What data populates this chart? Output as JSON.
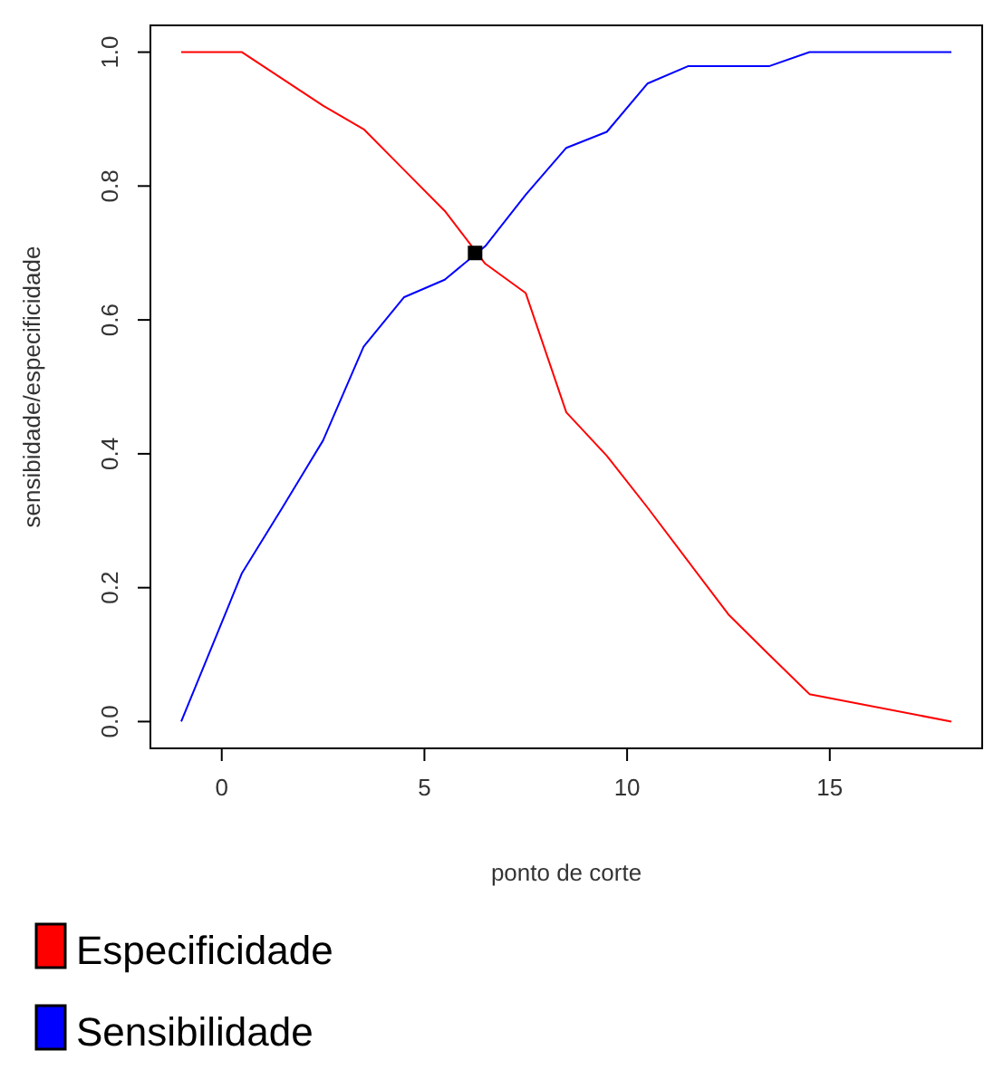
{
  "chart_data": {
    "type": "line",
    "xlabel": "ponto de corte",
    "ylabel": "sensibidade/especificidade",
    "xlim": [
      -1.76,
      18.76
    ],
    "ylim": [
      -0.04,
      1.04
    ],
    "xticks": [
      0,
      5,
      10,
      15
    ],
    "yticks": [
      {
        "value": 0,
        "label": "0.0"
      },
      0.2,
      0.4,
      0.6,
      0.8,
      {
        "value": 1,
        "label": "1.0"
      }
    ],
    "legend": "bottom left",
    "marker": "none",
    "line_style": "solid",
    "series": [
      {
        "name": "Especificidade",
        "color": "#ff0000",
        "x": [
          -1,
          0.5,
          1.5,
          2.5,
          3.5,
          4.5,
          5.5,
          6.5,
          7.5,
          8.5,
          9.5,
          10.5,
          11.5,
          12.5,
          13.5,
          14.5,
          18
        ],
        "values": [
          1,
          1,
          0.96,
          0.92,
          0.885,
          0.824,
          0.763,
          0.684,
          0.64,
          0.462,
          0.397,
          0.32,
          0.24,
          0.16,
          0.1,
          0.041,
          0
        ]
      },
      {
        "name": "Sensibilidade",
        "color": "#0000ff",
        "x": [
          -1,
          0.5,
          1.5,
          2.5,
          3.5,
          4.5,
          5.5,
          6.5,
          7.5,
          8.5,
          9.5,
          10.5,
          11.5,
          12.5,
          13.5,
          14.5,
          18
        ],
        "values": [
          0,
          0.222,
          0.32,
          0.42,
          0.56,
          0.634,
          0.66,
          0.71,
          0.787,
          0.857,
          0.881,
          0.953,
          0.979,
          0.979,
          0.979,
          1,
          1
        ]
      },
      {
        "type": "scatter",
        "color": "#000000",
        "marker": "square",
        "x": [
          6.25
        ],
        "values": [
          0.7
        ]
      }
    ]
  }
}
